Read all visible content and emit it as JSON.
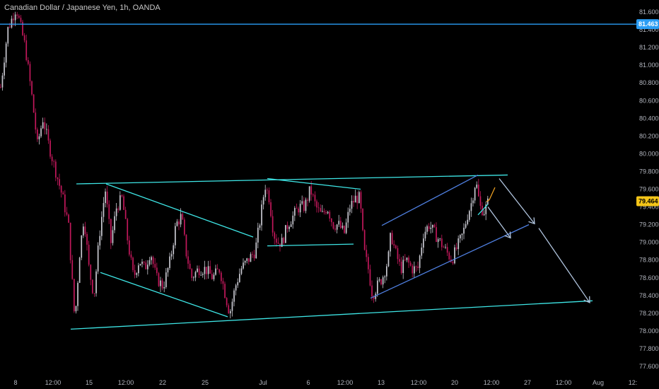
{
  "header": {
    "title": "Canadian Dollar / Japanese Yen, 1h, OANDA"
  },
  "colors": {
    "background": "#000000",
    "candle_up": "#c9c9d1",
    "candle_down": "#c2185b",
    "trend_cyan": "#3ee6e6",
    "channel_blue": "#4f7fe0",
    "projection": "#b0c4de",
    "level_line": "#2a9df4",
    "current_price_tag": "#f5c518",
    "level_price_tag": "#2a9df4"
  },
  "chart_data": {
    "type": "candlestick",
    "title": "Canadian Dollar / Japanese Yen, 1h, OANDA",
    "ylim": [
      77.5,
      81.7
    ],
    "y_ticks": [
      "81.600",
      "81.400",
      "81.200",
      "81.000",
      "80.800",
      "80.600",
      "80.400",
      "80.200",
      "80.000",
      "79.800",
      "79.600",
      "79.400",
      "79.200",
      "79.000",
      "78.800",
      "78.600",
      "78.400",
      "78.200",
      "78.000",
      "77.800",
      "77.600"
    ],
    "x_ticks": [
      "8",
      "12:00",
      "15",
      "12:00",
      "22",
      "25",
      "Jul",
      "6",
      "12:00",
      "13",
      "12:00",
      "20",
      "12:00",
      "27",
      "12:00",
      "Aug",
      "12:"
    ],
    "price_labels": {
      "horizontal_level": "81.463",
      "current_price": "79.464"
    },
    "price_path": [
      [
        0,
        80.75
      ],
      [
        10,
        81.4
      ],
      [
        22,
        81.65
      ],
      [
        35,
        81.2
      ],
      [
        45,
        80.6
      ],
      [
        52,
        80.1
      ],
      [
        60,
        80.4
      ],
      [
        68,
        80.1
      ],
      [
        78,
        79.8
      ],
      [
        88,
        79.5
      ],
      [
        96,
        79.2
      ],
      [
        105,
        78.1
      ],
      [
        112,
        78.9
      ],
      [
        118,
        79.3
      ],
      [
        125,
        78.7
      ],
      [
        132,
        78.4
      ],
      [
        140,
        79.1
      ],
      [
        148,
        79.6
      ],
      [
        156,
        79.0
      ],
      [
        164,
        79.4
      ],
      [
        172,
        79.5
      ],
      [
        180,
        79.0
      ],
      [
        188,
        78.6
      ],
      [
        196,
        78.8
      ],
      [
        204,
        78.7
      ],
      [
        212,
        78.9
      ],
      [
        220,
        78.6
      ],
      [
        230,
        78.5
      ],
      [
        240,
        78.8
      ],
      [
        248,
        79.2
      ],
      [
        256,
        79.3
      ],
      [
        262,
        78.9
      ],
      [
        270,
        78.6
      ],
      [
        280,
        78.7
      ],
      [
        290,
        78.7
      ],
      [
        300,
        78.6
      ],
      [
        310,
        78.7
      ],
      [
        318,
        78.4
      ],
      [
        324,
        78.2
      ],
      [
        332,
        78.5
      ],
      [
        340,
        78.7
      ],
      [
        350,
        78.8
      ],
      [
        360,
        78.9
      ],
      [
        368,
        79.3
      ],
      [
        374,
        79.65
      ],
      [
        380,
        79.5
      ],
      [
        386,
        79.1
      ],
      [
        392,
        79.0
      ],
      [
        398,
        79.0
      ],
      [
        406,
        79.2
      ],
      [
        414,
        79.3
      ],
      [
        422,
        79.4
      ],
      [
        430,
        79.4
      ],
      [
        438,
        79.6
      ],
      [
        446,
        79.4
      ],
      [
        454,
        79.3
      ],
      [
        462,
        79.4
      ],
      [
        470,
        79.2
      ],
      [
        478,
        79.2
      ],
      [
        486,
        79.1
      ],
      [
        494,
        79.4
      ],
      [
        502,
        79.5
      ],
      [
        508,
        79.5
      ],
      [
        514,
        78.9
      ],
      [
        520,
        78.7
      ],
      [
        526,
        78.4
      ],
      [
        532,
        78.5
      ],
      [
        540,
        78.6
      ],
      [
        548,
        78.8
      ],
      [
        552,
        79.1
      ],
      [
        558,
        78.9
      ],
      [
        566,
        78.7
      ],
      [
        574,
        78.8
      ],
      [
        582,
        78.7
      ],
      [
        590,
        78.7
      ],
      [
        598,
        79.1
      ],
      [
        606,
        79.2
      ],
      [
        614,
        79.1
      ],
      [
        622,
        79.0
      ],
      [
        630,
        78.9
      ],
      [
        638,
        78.8
      ],
      [
        646,
        78.95
      ],
      [
        654,
        79.1
      ],
      [
        660,
        79.3
      ],
      [
        666,
        79.45
      ],
      [
        672,
        79.7
      ],
      [
        678,
        79.4
      ],
      [
        684,
        79.35
      ],
      [
        690,
        79.46
      ]
    ],
    "forecast_path": [
      [
        688,
        79.46
      ],
      [
        692,
        79.48
      ],
      [
        696,
        79.55
      ],
      [
        700,
        79.62
      ]
    ],
    "series": [
      {
        "name": "",
        "type": "line",
        "points": [
          [
            108,
            79.66
          ],
          [
            718,
            79.76
          ]
        ]
      },
      {
        "name": "",
        "type": "line",
        "points": [
          [
            100,
            78.02
          ],
          [
            838,
            78.34
          ]
        ]
      },
      {
        "name": "",
        "type": "line",
        "points": [
          [
            150,
            79.66
          ],
          [
            358,
            79.06
          ]
        ]
      },
      {
        "name": "",
        "type": "line",
        "points": [
          [
            142,
            78.66
          ],
          [
            322,
            78.16
          ]
        ]
      },
      {
        "name": "",
        "type": "line",
        "points": [
          [
            378,
            79.72
          ],
          [
            510,
            79.6
          ]
        ]
      },
      {
        "name": "",
        "type": "line",
        "points": [
          [
            378,
            78.96
          ],
          [
            500,
            78.98
          ]
        ]
      },
      {
        "name": "",
        "type": "line",
        "points": [
          [
            540,
            79.19
          ],
          [
            676,
            79.76
          ]
        ]
      },
      {
        "name": "",
        "type": "line",
        "points": [
          [
            524,
            78.37
          ],
          [
            748,
            79.2
          ]
        ]
      },
      {
        "name": "",
        "type": "line",
        "points": [
          [
            676,
            79.31
          ],
          [
            690,
            79.43
          ]
        ]
      },
      {
        "name": "",
        "type": "line",
        "points": [
          [
            706,
            79.72
          ],
          [
            756,
            79.21
          ]
        ]
      },
      {
        "name": "",
        "type": "line",
        "points": [
          [
            690,
            79.4
          ],
          [
            722,
            79.05
          ]
        ]
      },
      {
        "name": "",
        "type": "line",
        "points": [
          [
            762,
            79.16
          ],
          [
            834,
            78.32
          ]
        ]
      }
    ],
    "horizontal_level": 81.463,
    "current_price": 79.464,
    "legend": "none",
    "grid": false
  }
}
